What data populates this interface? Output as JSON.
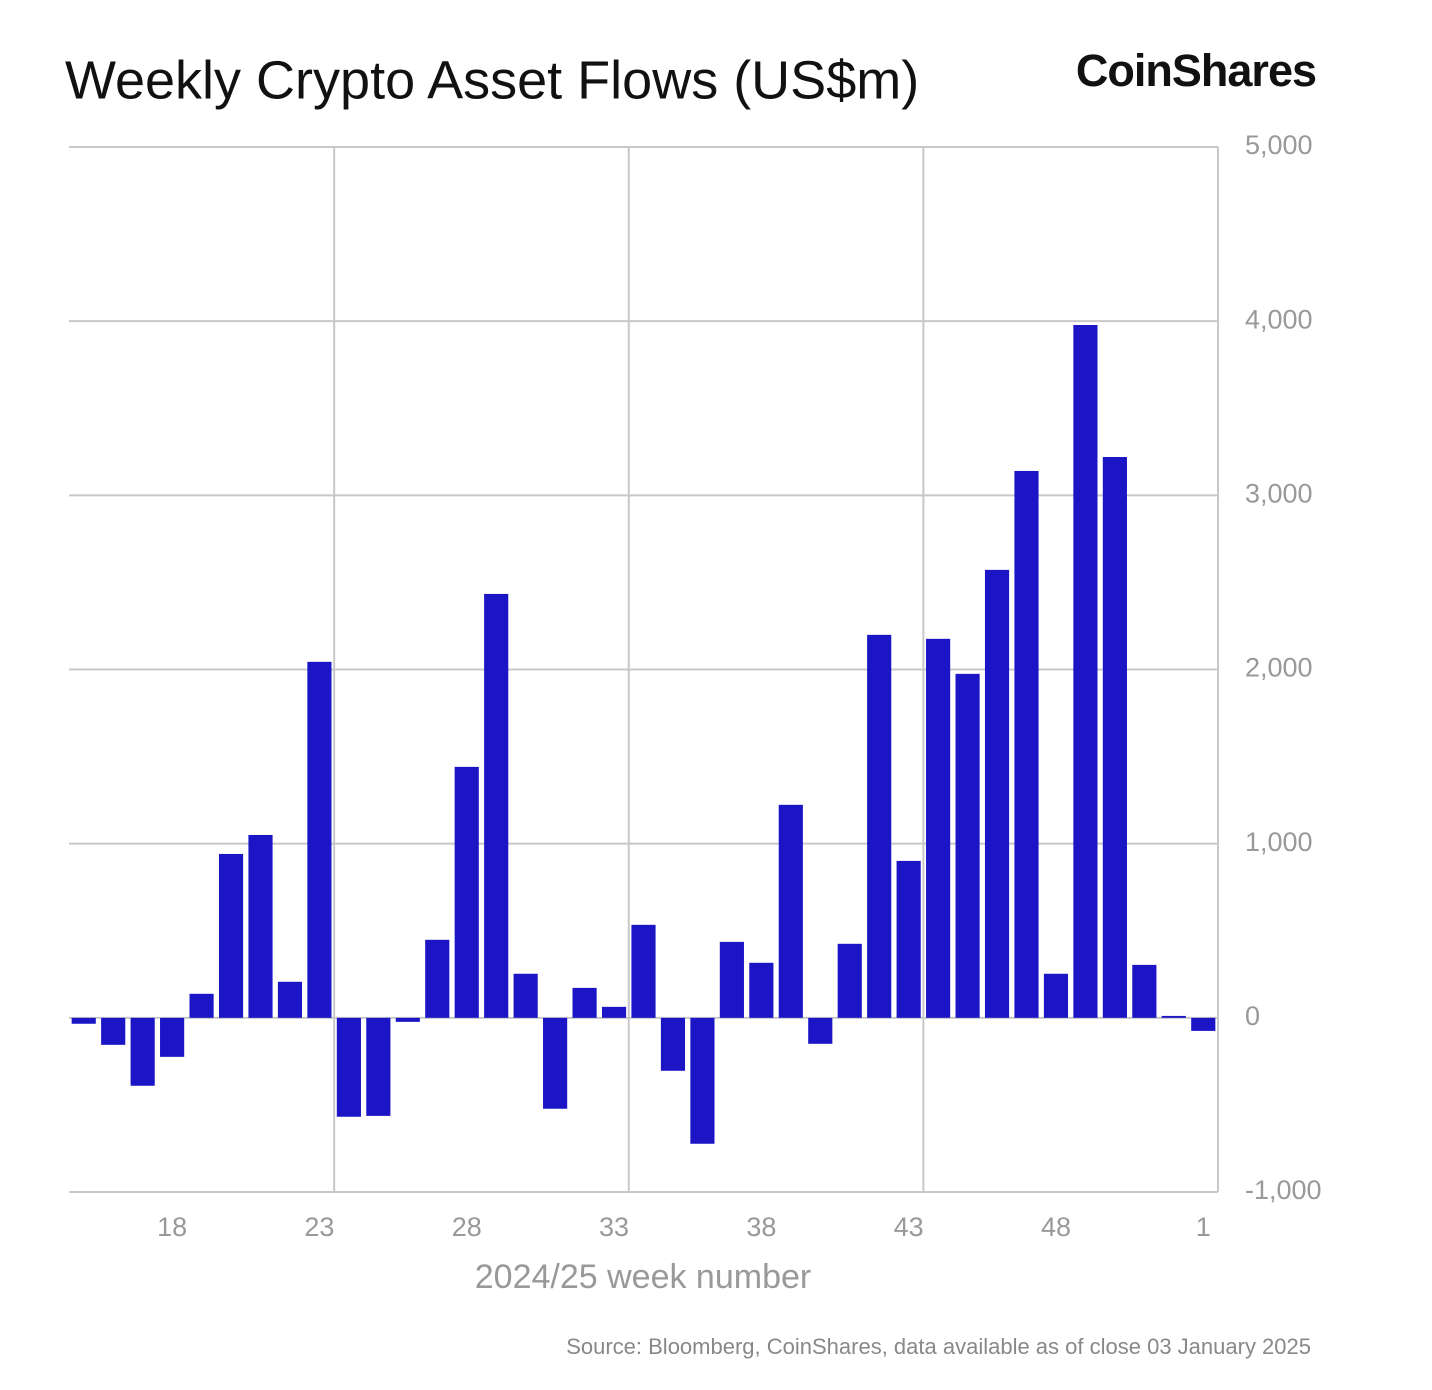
{
  "chart_data": {
    "type": "bar",
    "title": "Weekly Crypto Asset Flows (US$m)",
    "brand": "CoinShares",
    "x_label": "2024/25 week number",
    "source": "Source: Bloomberg, CoinShares, data available as of close 03 January 2025",
    "categories": [
      null,
      null,
      null,
      "18",
      null,
      null,
      null,
      null,
      "23",
      null,
      null,
      null,
      null,
      "28",
      null,
      null,
      null,
      null,
      "33",
      null,
      null,
      null,
      null,
      "38",
      null,
      null,
      null,
      null,
      "43",
      null,
      null,
      null,
      null,
      "48",
      null,
      null,
      null,
      null,
      "1"
    ],
    "values": [
      -34,
      -155,
      -390,
      -224,
      138,
      941,
      1050,
      207,
      2044,
      -568,
      -563,
      -23,
      448,
      1441,
      2434,
      253,
      -522,
      172,
      63,
      534,
      -304,
      -723,
      436,
      316,
      1223,
      -149,
      425,
      2199,
      901,
      2176,
      1975,
      2572,
      3140,
      253,
      3978,
      3220,
      304,
      11,
      -75
    ],
    "color": "#1b15c6",
    "ylim": [
      -1000,
      5000
    ],
    "yticks": [
      {
        "value": -1000,
        "label": "-1,000"
      },
      0,
      {
        "value": 1000,
        "label": "1,000"
      },
      {
        "value": 2000,
        "label": "2,000"
      },
      {
        "value": 3000,
        "label": "3,000"
      },
      {
        "value": 4000,
        "label": "4,000"
      },
      {
        "value": 5000,
        "label": "5,000"
      }
    ],
    "grid": true
  }
}
